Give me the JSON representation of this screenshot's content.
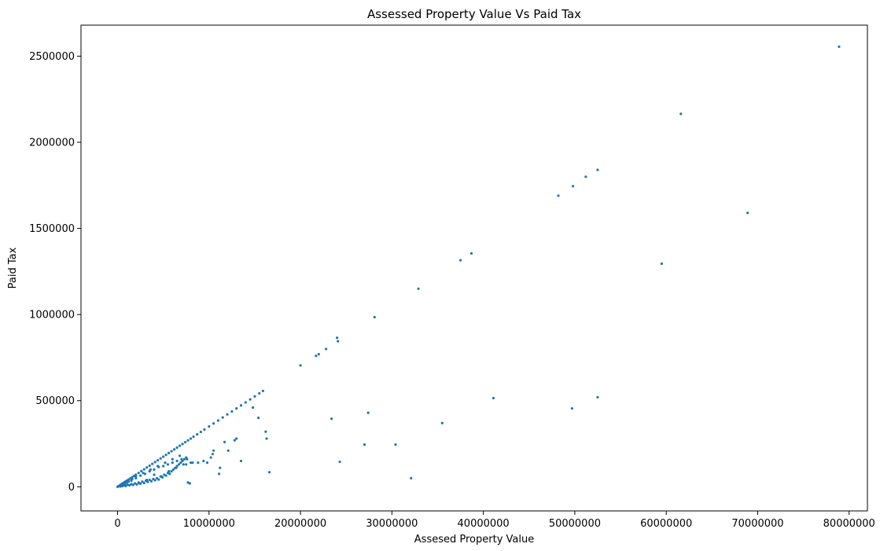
{
  "chart_data": {
    "type": "scatter",
    "title": "Assessed Property Value Vs Paid Tax",
    "xlabel": "Assesed Property Value",
    "ylabel": "Paid Tax",
    "xlim": [
      -4000000,
      82000000
    ],
    "ylim": [
      -140000,
      2680000
    ],
    "xticks": [
      0,
      10000000,
      20000000,
      30000000,
      40000000,
      50000000,
      60000000,
      70000000,
      80000000
    ],
    "xtick_labels": [
      "0",
      "10000000",
      "20000000",
      "30000000",
      "40000000",
      "50000000",
      "60000000",
      "70000000",
      "80000000"
    ],
    "yticks": [
      0,
      500000,
      1000000,
      1500000,
      2000000,
      2500000
    ],
    "ytick_labels": [
      "0",
      "500000",
      "1000000",
      "1500000",
      "2000000",
      "2500000"
    ],
    "grid": false,
    "marker_color": "#1f77b4",
    "x": [
      0,
      100000,
      200000,
      300000,
      400000,
      500000,
      600000,
      700000,
      800000,
      900000,
      1000000,
      1200000,
      1400000,
      1600000,
      1800000,
      2000000,
      2300000,
      2600000,
      2900000,
      3200000,
      3500000,
      3800000,
      4100000,
      4400000,
      4700000,
      5000000,
      5300000,
      5600000,
      5900000,
      6200000,
      6500000,
      6800000,
      7100000,
      7400000,
      7700000,
      8000000,
      8300000,
      8700000,
      9100000,
      9500000,
      10000000,
      10500000,
      11000000,
      11500000,
      12000000,
      12500000,
      13000000,
      13500000,
      14000000,
      14500000,
      15000000,
      15500000,
      15900000,
      300000,
      500000,
      700000,
      900000,
      1100000,
      1300000,
      1500000,
      1700000,
      1900000,
      2100000,
      2300000,
      2500000,
      2700000,
      2900000,
      3100000,
      3300000,
      3500000,
      3700000,
      3900000,
      4100000,
      4300000,
      4500000,
      4700000,
      4900000,
      5100000,
      5300000,
      5500000,
      5700000,
      5900000,
      6100000,
      6300000,
      6500000,
      6700000,
      6900000,
      7100000,
      7300000,
      7500000,
      7700000,
      7900000,
      800000,
      1200000,
      1600000,
      2000000,
      2400000,
      2800000,
      3200000,
      3600000,
      4000000,
      4400000,
      4800000,
      5200000,
      5600000,
      6000000,
      6400000,
      6800000,
      7200000,
      7600000,
      8000000,
      1000000,
      1500000,
      2000000,
      2500000,
      3000000,
      3500000,
      4000000,
      4500000,
      5000000,
      5500000,
      6000000,
      6500000,
      7000000,
      7500000,
      8200000,
      8800000,
      9400000,
      10200000,
      10500000,
      11200000,
      11700000,
      12100000,
      12800000,
      13000000,
      13500000,
      14800000,
      15400000,
      16200000,
      16300000,
      16600000,
      11100000,
      9800000,
      10400000,
      20000000,
      21700000,
      22000000,
      22800000,
      24000000,
      24100000,
      28100000,
      32900000,
      37500000,
      38700000,
      48200000,
      49800000,
      51200000,
      52500000,
      61600000,
      59500000,
      68900000,
      78900000,
      23400000,
      24300000,
      27000000,
      27400000,
      30400000,
      32100000,
      35500000,
      41100000,
      49700000,
      52500000
    ],
    "y": [
      0,
      3500,
      7000,
      10500,
      14000,
      17500,
      21000,
      24500,
      28000,
      31500,
      35000,
      42000,
      49000,
      56000,
      63000,
      70000,
      80500,
      91000,
      101500,
      112000,
      122500,
      133000,
      143500,
      154000,
      164500,
      175000,
      185500,
      196000,
      206500,
      217000,
      227500,
      238000,
      248500,
      259000,
      269500,
      280000,
      290500,
      304500,
      318500,
      332500,
      350000,
      367500,
      385000,
      402500,
      420000,
      437500,
      455000,
      472500,
      490000,
      507500,
      525000,
      542500,
      556500,
      2000,
      4000,
      8000,
      5000,
      12000,
      9000,
      15000,
      11000,
      20000,
      14000,
      25000,
      18000,
      30000,
      22000,
      35000,
      28000,
      40000,
      32000,
      45000,
      38000,
      50000,
      42000,
      60000,
      55000,
      70000,
      65000,
      80000,
      75000,
      90000,
      100000,
      110000,
      120000,
      130000,
      140000,
      150000,
      160000,
      130000,
      25000,
      20000,
      15000,
      30000,
      45000,
      60000,
      20000,
      80000,
      40000,
      100000,
      70000,
      120000,
      60000,
      140000,
      90000,
      160000,
      110000,
      180000,
      130000,
      160000,
      140000,
      25000,
      35000,
      50000,
      65000,
      75000,
      90000,
      100000,
      115000,
      120000,
      130000,
      140000,
      150000,
      160000,
      170000,
      140000,
      140000,
      150000,
      170000,
      210000,
      110000,
      260000,
      210000,
      270000,
      280000,
      150000,
      460000,
      400000,
      320000,
      280000,
      85000,
      75000,
      140000,
      190000,
      705000,
      760000,
      770000,
      800000,
      865000,
      845000,
      985000,
      1150000,
      1315000,
      1355000,
      1690000,
      1745000,
      1800000,
      1840000,
      2165000,
      1295000,
      1590000,
      2555000,
      395000,
      145000,
      245000,
      430000,
      245000,
      50000,
      370000,
      515000,
      455000,
      520000
    ]
  }
}
